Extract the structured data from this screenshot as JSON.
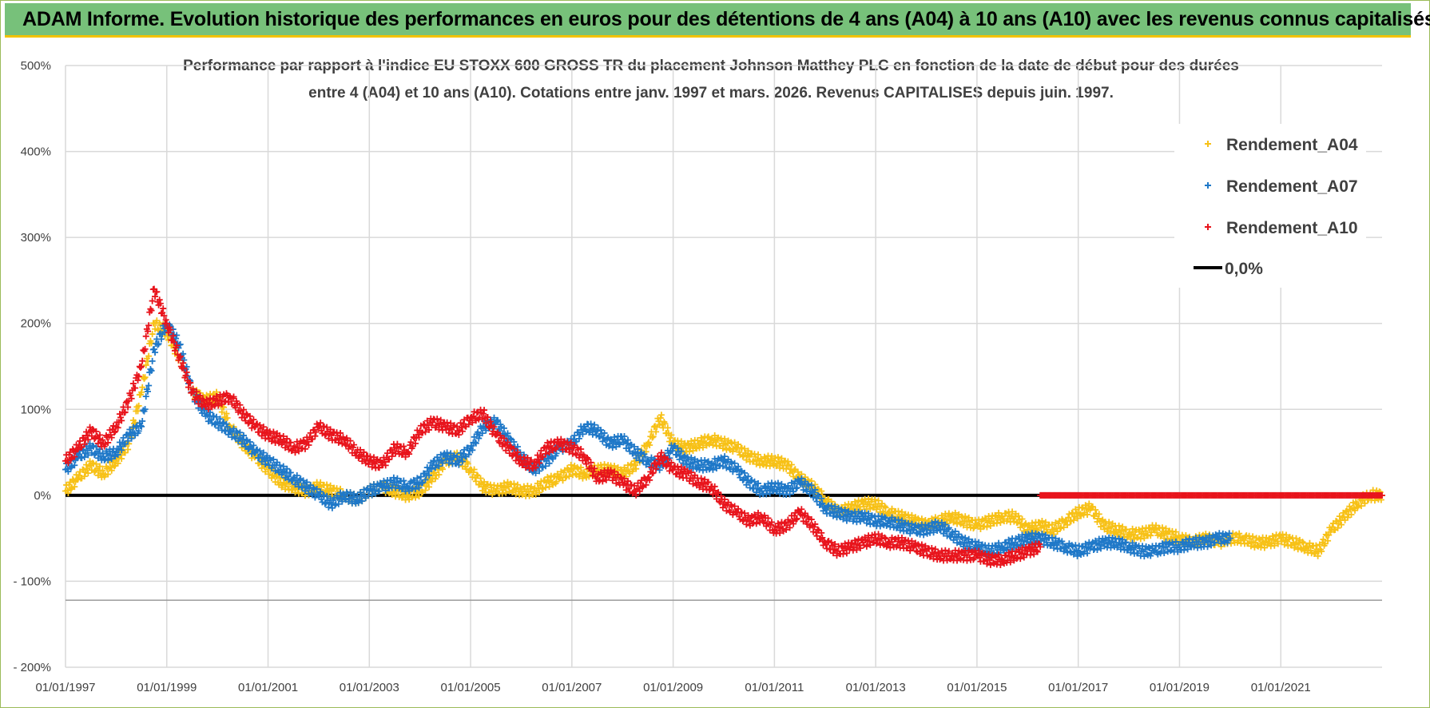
{
  "header": {
    "title": "ADAM Informe. Evolution historique des performances en euros pour des détentions de 4 ans (A04) à 10 ans (A10) avec les revenus connus capitalisés"
  },
  "colors": {
    "banner": "#77c17a",
    "banner_border": "#f2c200",
    "A04": "#f7c117",
    "A07": "#1f78c8",
    "A10": "#e8141c",
    "zero": "#000000",
    "grid": "#d9d9d9"
  },
  "chart_data": {
    "type": "scatter",
    "title_line1": "Performance par rapport à l'indice EU STOXX 600 GROSS TR  du placement Johnson Matthey PLC en fonction de la date de début pour des durées",
    "title_line2": "entre 4 (A04) et 10 ans (A10). Cotations entre janv. 1997 et mars. 2026. Revenus CAPITALISES depuis juin. 1997.",
    "xlabel": "",
    "ylabel": "",
    "ylim": [
      -200,
      500
    ],
    "xlim": [
      1997.0,
      2023.0
    ],
    "y_ticks": [
      "500%",
      "400%",
      "300%",
      "200%",
      "100%",
      "0%",
      "- 100%",
      "- 200%"
    ],
    "y_tick_values": [
      500,
      400,
      300,
      200,
      100,
      0,
      -100,
      -200
    ],
    "x_ticks": [
      "01/01/1997",
      "01/01/1999",
      "01/01/2001",
      "01/01/2003",
      "01/01/2005",
      "01/01/2007",
      "01/01/2009",
      "01/01/2011",
      "01/01/2013",
      "01/01/2015",
      "01/01/2017",
      "01/01/2019",
      "01/01/2021"
    ],
    "x_tick_values": [
      1997,
      1999,
      2001,
      2003,
      2005,
      2007,
      2009,
      2011,
      2013,
      2015,
      2017,
      2019,
      2021
    ],
    "legend": [
      "Rendement_A04",
      "Rendement_A07",
      "Rendement_A10",
      "0,0%"
    ],
    "series": [
      {
        "name": "Rendement_A04",
        "color": "#f7c117",
        "x": [
          1997.0,
          1997.25,
          1997.5,
          1997.75,
          1998.0,
          1998.25,
          1998.5,
          1998.75,
          1999.0,
          1999.25,
          1999.5,
          1999.75,
          2000.0,
          2000.25,
          2000.5,
          2000.75,
          2001.0,
          2001.25,
          2001.5,
          2001.75,
          2002.0,
          2002.25,
          2002.5,
          2002.75,
          2003.0,
          2003.25,
          2003.5,
          2003.75,
          2004.0,
          2004.25,
          2004.5,
          2004.75,
          2005.0,
          2005.25,
          2005.5,
          2005.75,
          2006.0,
          2006.25,
          2006.5,
          2006.75,
          2007.0,
          2007.25,
          2007.5,
          2007.75,
          2008.0,
          2008.25,
          2008.5,
          2008.75,
          2009.0,
          2009.25,
          2009.5,
          2009.75,
          2010.0,
          2010.25,
          2010.5,
          2010.75,
          2011.0,
          2011.25,
          2011.5,
          2011.75,
          2012.0,
          2012.25,
          2012.5,
          2012.75,
          2013.0,
          2013.25,
          2013.5,
          2013.75,
          2014.0,
          2014.25,
          2014.5,
          2014.75,
          2015.0,
          2015.25,
          2015.5,
          2015.75,
          2016.0,
          2016.25,
          2016.5,
          2016.75,
          2017.0,
          2017.25,
          2017.5,
          2017.75,
          2018.0,
          2018.25,
          2018.5,
          2018.75,
          2019.0,
          2019.25,
          2019.5,
          2019.75,
          2020.0,
          2020.25,
          2020.5,
          2020.75,
          2021.0,
          2021.25,
          2021.5,
          2021.75,
          2022.0,
          2022.25,
          2022.5,
          2022.75,
          2023.0
        ],
        "values": [
          5,
          20,
          35,
          25,
          40,
          60,
          120,
          200,
          190,
          160,
          120,
          110,
          115,
          80,
          60,
          45,
          30,
          15,
          10,
          5,
          10,
          5,
          0,
          -5,
          5,
          10,
          5,
          0,
          5,
          20,
          40,
          45,
          30,
          10,
          5,
          10,
          5,
          5,
          15,
          20,
          30,
          25,
          30,
          30,
          25,
          35,
          60,
          90,
          60,
          55,
          60,
          65,
          60,
          55,
          45,
          40,
          40,
          35,
          20,
          10,
          -5,
          -20,
          -15,
          -10,
          -10,
          -20,
          -25,
          -30,
          -35,
          -30,
          -25,
          -30,
          -35,
          -30,
          -25,
          -25,
          -40,
          -35,
          -40,
          -30,
          -20,
          -15,
          -35,
          -40,
          -45,
          -45,
          -40,
          -45,
          -50,
          -55,
          -50,
          -55,
          -50,
          -50,
          -55,
          -55,
          -50,
          -55,
          -60,
          -65,
          -40,
          -25,
          -10,
          0,
          0
        ]
      },
      {
        "name": "Rendement_A07",
        "color": "#1f78c8",
        "x": [
          1997.0,
          1997.25,
          1997.5,
          1997.75,
          1998.0,
          1998.25,
          1998.5,
          1998.75,
          1999.0,
          1999.25,
          1999.5,
          1999.75,
          2000.0,
          2000.25,
          2000.5,
          2000.75,
          2001.0,
          2001.25,
          2001.5,
          2001.75,
          2002.0,
          2002.25,
          2002.5,
          2002.75,
          2003.0,
          2003.25,
          2003.5,
          2003.75,
          2004.0,
          2004.25,
          2004.5,
          2004.75,
          2005.0,
          2005.25,
          2005.5,
          2005.75,
          2006.0,
          2006.25,
          2006.5,
          2006.75,
          2007.0,
          2007.25,
          2007.5,
          2007.75,
          2008.0,
          2008.25,
          2008.5,
          2008.75,
          2009.0,
          2009.25,
          2009.5,
          2009.75,
          2010.0,
          2010.25,
          2010.5,
          2010.75,
          2011.0,
          2011.25,
          2011.5,
          2011.75,
          2012.0,
          2012.25,
          2012.5,
          2012.75,
          2013.0,
          2013.25,
          2013.5,
          2013.75,
          2014.0,
          2014.25,
          2014.5,
          2014.75,
          2015.0,
          2015.25,
          2015.5,
          2015.75,
          2016.0,
          2016.25,
          2016.5,
          2016.75,
          2017.0,
          2017.25,
          2017.5,
          2017.75,
          2018.0,
          2018.25,
          2018.5,
          2018.75,
          2019.0,
          2019.25,
          2019.5,
          2019.75,
          2020.0
        ],
        "values": [
          30,
          45,
          55,
          45,
          50,
          70,
          80,
          170,
          200,
          175,
          120,
          95,
          85,
          75,
          65,
          50,
          40,
          30,
          20,
          10,
          0,
          -10,
          0,
          -5,
          5,
          10,
          15,
          10,
          15,
          35,
          45,
          40,
          55,
          80,
          85,
          65,
          45,
          30,
          40,
          55,
          60,
          80,
          75,
          60,
          65,
          50,
          40,
          35,
          55,
          40,
          35,
          35,
          40,
          30,
          15,
          5,
          10,
          5,
          15,
          5,
          -15,
          -20,
          -25,
          -25,
          -30,
          -30,
          -35,
          -40,
          -40,
          -35,
          -45,
          -55,
          -60,
          -65,
          -60,
          -55,
          -50,
          -50,
          -55,
          -60,
          -65,
          -60,
          -55,
          -55,
          -60,
          -65,
          -65,
          -60,
          -60,
          -55,
          -55,
          -50,
          -50
        ]
      },
      {
        "name": "Rendement_A10",
        "color": "#e8141c",
        "x": [
          1997.0,
          1997.25,
          1997.5,
          1997.75,
          1998.0,
          1998.25,
          1998.5,
          1998.75,
          1999.0,
          1999.25,
          1999.5,
          1999.75,
          2000.0,
          2000.25,
          2000.5,
          2000.75,
          2001.0,
          2001.25,
          2001.5,
          2001.75,
          2002.0,
          2002.25,
          2002.5,
          2002.75,
          2003.0,
          2003.25,
          2003.5,
          2003.75,
          2004.0,
          2004.25,
          2004.5,
          2004.75,
          2005.0,
          2005.25,
          2005.5,
          2005.75,
          2006.0,
          2006.25,
          2006.5,
          2006.75,
          2007.0,
          2007.25,
          2007.5,
          2007.75,
          2008.0,
          2008.25,
          2008.5,
          2008.75,
          2009.0,
          2009.25,
          2009.5,
          2009.75,
          2010.0,
          2010.25,
          2010.5,
          2010.75,
          2011.0,
          2011.25,
          2011.5,
          2011.75,
          2012.0,
          2012.25,
          2012.5,
          2012.75,
          2013.0,
          2013.25,
          2013.5,
          2013.75,
          2014.0,
          2014.25,
          2014.5,
          2014.75,
          2015.0,
          2015.25,
          2015.5,
          2015.75,
          2016.0,
          2016.25
        ],
        "values": [
          40,
          55,
          75,
          60,
          80,
          110,
          150,
          240,
          200,
          160,
          120,
          105,
          110,
          115,
          95,
          80,
          70,
          65,
          55,
          60,
          80,
          70,
          65,
          50,
          40,
          35,
          55,
          50,
          75,
          85,
          80,
          75,
          90,
          95,
          70,
          55,
          40,
          35,
          55,
          60,
          55,
          45,
          20,
          25,
          15,
          5,
          20,
          45,
          30,
          25,
          15,
          10,
          -10,
          -20,
          -30,
          -25,
          -40,
          -35,
          -20,
          -35,
          -55,
          -65,
          -60,
          -55,
          -50,
          -55,
          -55,
          -60,
          -65,
          -70,
          -70,
          -70,
          -70,
          -75,
          -75,
          -70,
          -65,
          -60
        ]
      },
      {
        "name": "Rendement_A10_zero_tail",
        "color": "#e8141c",
        "x": [
          2016.25,
          2017.0,
          2018.0,
          2019.0,
          2020.0,
          2021.0,
          2022.0,
          2023.0
        ],
        "values": [
          0,
          0,
          0,
          0,
          0,
          0,
          0,
          0
        ]
      }
    ]
  }
}
